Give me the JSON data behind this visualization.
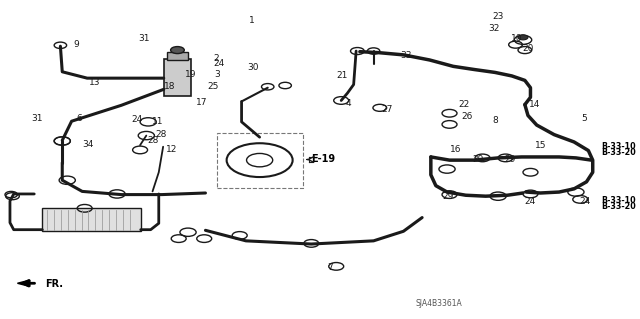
{
  "bg_color": "#ffffff",
  "line_color": "#1a1a1a",
  "label_color": "#1a1a1a",
  "diagram_code": "SJA4B3361A",
  "fr_label": "FR.",
  "e19_label": "E-19",
  "b3310_label": "B-33-10",
  "b3320_label": "B-33-20"
}
